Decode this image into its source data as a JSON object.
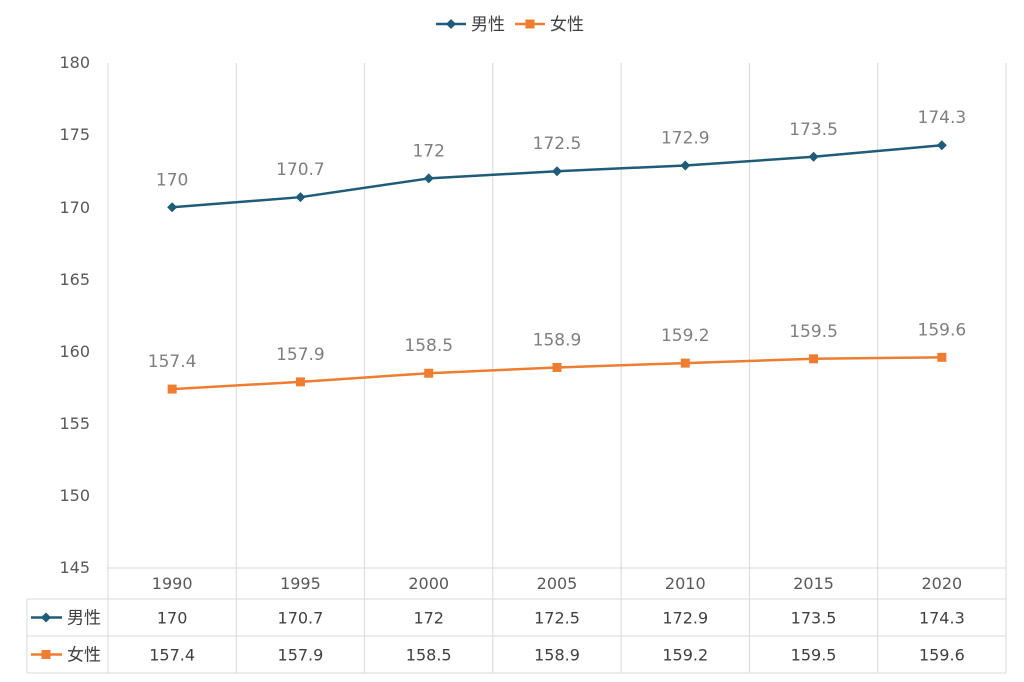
{
  "chart_data": {
    "type": "line",
    "title": "",
    "xlabel": "",
    "ylabel": "",
    "categories": [
      "1990",
      "1995",
      "2000",
      "2005",
      "2010",
      "2015",
      "2020"
    ],
    "ylim": [
      145,
      180
    ],
    "yticks": [
      "180",
      "175",
      "170",
      "165",
      "160",
      "155",
      "150",
      "145"
    ],
    "grid": "vertical",
    "legend": "top-center",
    "data_table": true,
    "series": [
      {
        "name": "男性",
        "color": "#1f5c7a",
        "marker": "diamond",
        "values": [
          170,
          170.7,
          172,
          172.5,
          172.9,
          173.5,
          174.3
        ],
        "labels": [
          "170",
          "170.7",
          "172",
          "172.5",
          "172.9",
          "173.5",
          "174.3"
        ]
      },
      {
        "name": "女性",
        "color": "#ed7d31",
        "marker": "square",
        "values": [
          157.4,
          157.9,
          158.5,
          158.9,
          159.2,
          159.5,
          159.6
        ],
        "labels": [
          "157.4",
          "157.9",
          "158.5",
          "158.9",
          "159.2",
          "159.5",
          "159.6"
        ]
      }
    ]
  }
}
